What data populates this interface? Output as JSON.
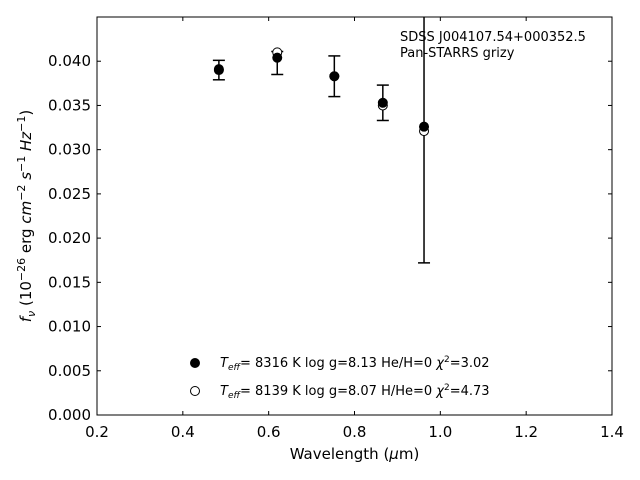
{
  "chart_data": {
    "type": "scatter",
    "xlabel_parts": [
      "Wavelength (",
      "μ",
      "m)"
    ],
    "ylabel_parts": [
      "f",
      "ν",
      " (10",
      "−26",
      " erg ",
      "cm",
      "−2",
      " s",
      "−1",
      " Hz",
      "−1",
      ")"
    ],
    "xlim": [
      0.2,
      1.4
    ],
    "ylim": [
      0.0,
      0.045
    ],
    "xticks": [
      0.2,
      0.4,
      0.6,
      0.8,
      1.0,
      1.2,
      1.4
    ],
    "xtick_labels": [
      "0.2",
      "0.4",
      "0.6",
      "0.8",
      "1.0",
      "1.2",
      "1.4"
    ],
    "yticks": [
      0.0,
      0.005,
      0.01,
      0.015,
      0.02,
      0.025,
      0.03,
      0.035,
      0.04
    ],
    "ytick_labels": [
      "0.000",
      "0.005",
      "0.010",
      "0.015",
      "0.020",
      "0.025",
      "0.030",
      "0.035",
      "0.040"
    ],
    "annotations": [
      "SDSS J004107.54+000352.5",
      "Pan-STARRS grizy"
    ],
    "observed": {
      "x": [
        0.484,
        0.62,
        0.753,
        0.866,
        0.962
      ],
      "y": [
        0.039,
        0.0398,
        0.0383,
        0.0353,
        0.0327
      ],
      "yerr": [
        0.0011,
        0.0013,
        0.0023,
        0.002,
        0.0155
      ]
    },
    "series": [
      {
        "marker": "filled-circle",
        "x": [
          0.484,
          0.62,
          0.753,
          0.866,
          0.962
        ],
        "y": [
          0.0391,
          0.0404,
          0.0383,
          0.0353,
          0.0326
        ],
        "legend_parts": [
          "T",
          "eff",
          "=  8316 K  log g=8.13  He/H=0  ",
          "χ",
          "2",
          "=3.02"
        ]
      },
      {
        "marker": "open-circle",
        "x": [
          0.484,
          0.62,
          0.753,
          0.866,
          0.962
        ],
        "y": [
          0.039,
          0.041,
          0.0383,
          0.035,
          0.0321
        ],
        "legend_parts": [
          "T",
          "eff",
          "=  8139 K  log g=8.07  H/He=0  ",
          "χ",
          "2",
          "=4.73"
        ]
      }
    ],
    "legend_position": "lower-center",
    "grid": false
  }
}
